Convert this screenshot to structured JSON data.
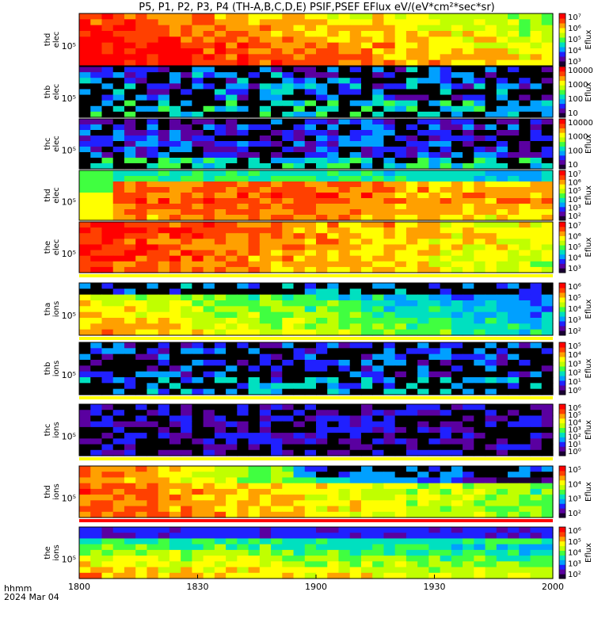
{
  "chart_data": {
    "type": "heatmap",
    "title": "P5, P1, P2, P3, P4 (TH-A,B,C,D,E) PSIF,PSEF EFlux eV/(eV*cm²*sec*sr)",
    "xlabel_lines": [
      "hhmm",
      "2024 Mar 04"
    ],
    "x_ticks": [
      "1800",
      "1830",
      "1900",
      "1930",
      "2000"
    ],
    "x_range_minutes": [
      0,
      120
    ],
    "colorbar_label": "Eflux",
    "colorbar_colors": [
      "#1a0033",
      "#5a00a0",
      "#2020ff",
      "#00a0ff",
      "#00e0c0",
      "#40ff40",
      "#c0ff00",
      "#ffff00",
      "#ffa000",
      "#ff4000",
      "#ff0000"
    ],
    "panels": [
      {
        "label": [
          "thd",
          "elec"
        ],
        "ylabel": "thd elec",
        "ytick": "10⁵",
        "cbar_ticks": [
          "10⁷",
          "10⁶",
          "10⁵",
          "10⁴",
          "10³"
        ],
        "gap": null,
        "separator": null
      },
      {
        "label": [
          "thb",
          "elec"
        ],
        "ylabel": "thb elec",
        "ytick": "10⁵",
        "cbar_ticks": [
          "10000",
          "1000",
          "100",
          "10"
        ],
        "gap": [
          62,
          71
        ],
        "separator": null
      },
      {
        "label": [
          "thc",
          "elec"
        ],
        "ylabel": "thc elec",
        "ytick": "10⁵",
        "cbar_ticks": [
          "10000",
          "1000",
          "100",
          "10"
        ],
        "gap": null,
        "separator": null
      },
      {
        "label": [
          "thd",
          "elec"
        ],
        "ylabel": "thd elec",
        "ytick": "10⁵",
        "cbar_ticks": [
          "10⁷",
          "10⁶",
          "10⁵",
          "10⁴",
          "10³",
          "10²"
        ],
        "gap": null,
        "separator": null
      },
      {
        "label": [
          "the",
          "elec"
        ],
        "ylabel": "the elec",
        "ytick": "10⁵",
        "cbar_ticks": [
          "10⁷",
          "10⁶",
          "10⁵",
          "10⁴",
          "10³"
        ],
        "gap": null,
        "separator": "yellow"
      },
      {
        "label": [
          "tha",
          "ions"
        ],
        "ylabel": "tha ions",
        "ytick": "10⁵",
        "cbar_ticks": [
          "10⁶",
          "10⁵",
          "10⁴",
          "10³",
          "10²"
        ],
        "gap": null,
        "separator": "yellow"
      },
      {
        "label": [
          "thb",
          "ions"
        ],
        "ylabel": "thb ions",
        "ytick": "10⁵",
        "cbar_ticks": [
          "10⁵",
          "10⁴",
          "10³",
          "10²",
          "10¹",
          "10⁰"
        ],
        "gap": [
          62,
          71
        ],
        "separator": "yellow"
      },
      {
        "label": [
          "thc",
          "ions"
        ],
        "ylabel": "thc ions",
        "ytick": "10⁵",
        "cbar_ticks": [
          "10⁶",
          "10⁵",
          "10⁴",
          "10³",
          "10²",
          "10¹",
          "10⁰"
        ],
        "gap": null,
        "separator": "yellow"
      },
      {
        "label": [
          "thd",
          "ions"
        ],
        "ylabel": "thd ions",
        "ytick": "10⁵",
        "cbar_ticks": [
          "10⁵",
          "10⁴",
          "10³",
          "10²"
        ],
        "gap": null,
        "separator": "red"
      },
      {
        "label": [
          "the",
          "ions"
        ],
        "ylabel": "the ions",
        "ytick": "10⁵",
        "cbar_ticks": [
          "10⁶",
          "10⁵",
          "10⁴",
          "10³",
          "10²"
        ],
        "gap": null,
        "separator": null
      }
    ]
  }
}
